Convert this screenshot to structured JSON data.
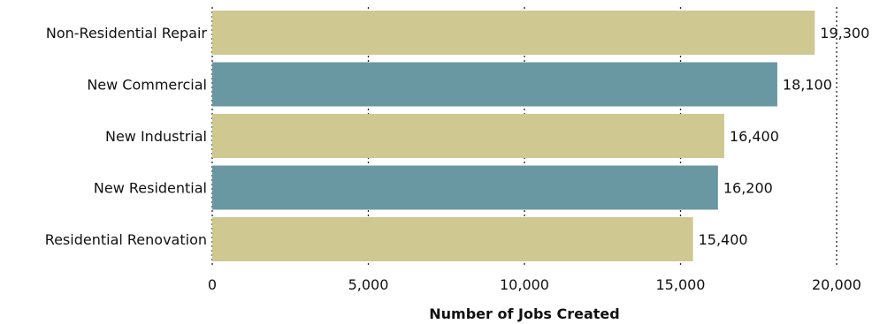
{
  "chart_data": {
    "type": "bar",
    "orientation": "horizontal",
    "categories": [
      "Non-Residential Repair",
      "New Commercial",
      "New Industrial",
      "New Residential",
      "Residential Renovation"
    ],
    "values": [
      19300,
      18100,
      16400,
      16200,
      15400
    ],
    "value_labels": [
      "19,300",
      "18,100",
      "16,400",
      "16,200",
      "15,400"
    ],
    "bar_colors": [
      "#cfc891",
      "#6a98a2",
      "#cfc891",
      "#6a98a2",
      "#cfc891"
    ],
    "xlabel": "Number of Jobs Created",
    "ylabel": "",
    "title": "",
    "xlim": [
      0,
      20000
    ],
    "x_ticks": [
      0,
      5000,
      10000,
      15000,
      20000
    ],
    "x_tick_labels": [
      "0",
      "5,000",
      "10,000",
      "15,000",
      "20,000"
    ],
    "grid": "vertical dotted",
    "legend": "none"
  }
}
